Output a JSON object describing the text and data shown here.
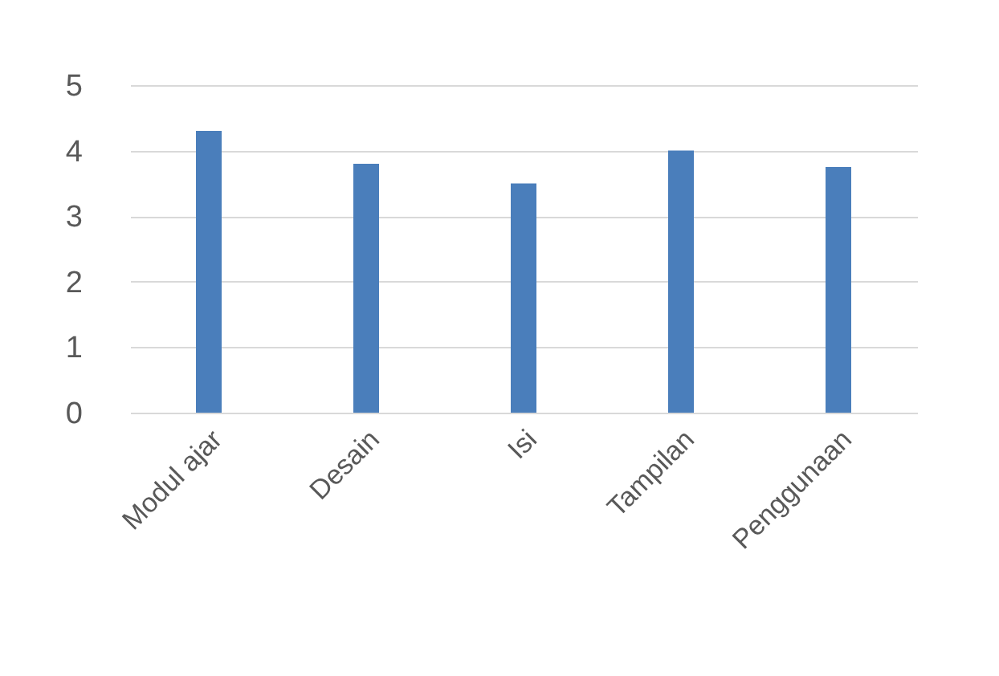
{
  "chart_data": {
    "type": "bar",
    "categories": [
      "Modul ajar",
      "Desain",
      "Isi",
      "Tampilan",
      "Penggunaan"
    ],
    "values": [
      4.3,
      3.8,
      3.5,
      4.0,
      3.75
    ],
    "color": "#4a7ebb",
    "ylim": [
      0,
      5
    ],
    "yticks": [
      0,
      1,
      2,
      3,
      4,
      5
    ],
    "grid": "y"
  }
}
